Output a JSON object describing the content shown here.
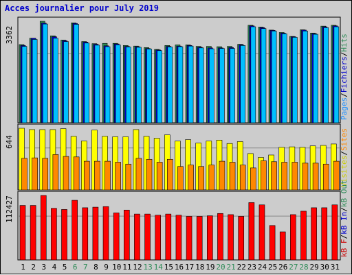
{
  "chart_data": [
    {
      "type": "bar",
      "title": "Acces journalier pour July 2019",
      "categories": [
        "1",
        "2",
        "3",
        "4",
        "5",
        "6",
        "7",
        "8",
        "9",
        "10",
        "11",
        "12",
        "13",
        "14",
        "15",
        "16",
        "17",
        "18",
        "19",
        "20",
        "21",
        "22",
        "23",
        "24",
        "25",
        "26",
        "27",
        "28",
        "29",
        "30",
        "31"
      ],
      "weekend_days": [
        "6",
        "7",
        "13",
        "14",
        "20",
        "21",
        "27",
        "28"
      ],
      "ylabel_tick": "3362",
      "legend": [
        {
          "label": "Pages",
          "color": "#1e90ff"
        },
        {
          "label": "/",
          "color": "#000000"
        },
        {
          "label": "Fichiers",
          "color": "#0000cc"
        },
        {
          "label": "/",
          "color": "#000000"
        },
        {
          "label": "Hits",
          "color": "#2e8b57"
        }
      ],
      "series": [
        {
          "name": "Hits",
          "color": "#2e8b57",
          "values": [
            2590,
            2800,
            3362,
            2880,
            2740,
            3310,
            2690,
            2620,
            2630,
            2630,
            2560,
            2540,
            2490,
            2430,
            2560,
            2580,
            2580,
            2530,
            2530,
            2520,
            2530,
            2600,
            3230,
            3170,
            3070,
            2990,
            2860,
            3080,
            2970,
            3200,
            3230
          ]
        },
        {
          "name": "Fichiers",
          "color": "#0000cc",
          "values": [
            2560,
            2800,
            3300,
            2850,
            2720,
            3290,
            2670,
            2600,
            2550,
            2610,
            2530,
            2520,
            2460,
            2410,
            2530,
            2540,
            2560,
            2500,
            2480,
            2480,
            2490,
            2580,
            3210,
            3150,
            3060,
            2970,
            2850,
            3070,
            2950,
            3180,
            3210
          ]
        },
        {
          "name": "Pages",
          "color": "#00bfff",
          "values": [
            2530,
            2760,
            3270,
            2800,
            2690,
            3260,
            2640,
            2570,
            2520,
            2580,
            2510,
            2500,
            2440,
            2390,
            2510,
            2520,
            2540,
            2480,
            2450,
            2460,
            2460,
            2560,
            3180,
            3120,
            3040,
            2950,
            2830,
            3040,
            2930,
            3150,
            3180
          ]
        }
      ]
    },
    {
      "type": "bar",
      "ylabel_tick": "644",
      "legend": [
        {
          "label": "Visites",
          "color": "#cccc00"
        },
        {
          "label": "/",
          "color": "#000000"
        },
        {
          "label": "Sites",
          "color": "#ff8800"
        }
      ],
      "series": [
        {
          "name": "Visites",
          "color": "#ffff00",
          "values": [
            644,
            630,
            630,
            630,
            640,
            560,
            510,
            625,
            560,
            555,
            555,
            630,
            560,
            540,
            575,
            510,
            525,
            490,
            510,
            520,
            485,
            505,
            380,
            340,
            365,
            445,
            450,
            445,
            460,
            465,
            480
          ]
        },
        {
          "name": "Sites",
          "color": "#ff8800",
          "values": [
            330,
            335,
            330,
            370,
            350,
            345,
            300,
            300,
            300,
            290,
            270,
            330,
            320,
            290,
            320,
            245,
            260,
            245,
            260,
            300,
            290,
            260,
            230,
            305,
            295,
            290,
            290,
            280,
            280,
            270,
            300
          ]
        }
      ]
    },
    {
      "type": "bar",
      "ylabel_tick": "112427",
      "legend": [
        {
          "label": "kB F",
          "color": "#cc0000"
        },
        {
          "label": "/",
          "color": "#000000"
        },
        {
          "label": "kB In",
          "color": "#0000cc"
        },
        {
          "label": "/",
          "color": "#000000"
        },
        {
          "label": "kB Out",
          "color": "#2e8b57"
        }
      ],
      "series": [
        {
          "name": "kB F",
          "color": "#ff0000",
          "values": [
            95000,
            95000,
            112427,
            90000,
            88000,
            104000,
            91000,
            92000,
            93000,
            82000,
            87000,
            80000,
            80000,
            78000,
            80000,
            78000,
            76000,
            76000,
            77000,
            81000,
            79000,
            76000,
            100000,
            96000,
            60000,
            49000,
            79000,
            85000,
            91000,
            91000,
            96000
          ]
        }
      ]
    }
  ]
}
